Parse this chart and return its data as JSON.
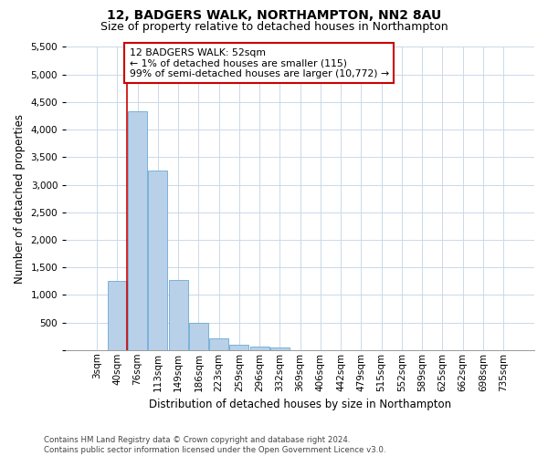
{
  "title": "12, BADGERS WALK, NORTHAMPTON, NN2 8AU",
  "subtitle": "Size of property relative to detached houses in Northampton",
  "xlabel": "Distribution of detached houses by size in Northampton",
  "ylabel": "Number of detached properties",
  "bar_labels": [
    "3sqm",
    "40sqm",
    "76sqm",
    "113sqm",
    "149sqm",
    "186sqm",
    "223sqm",
    "259sqm",
    "296sqm",
    "332sqm",
    "369sqm",
    "406sqm",
    "442sqm",
    "479sqm",
    "515sqm",
    "552sqm",
    "589sqm",
    "625sqm",
    "662sqm",
    "698sqm",
    "735sqm"
  ],
  "bar_values": [
    0,
    1260,
    4330,
    3260,
    1270,
    490,
    210,
    100,
    70,
    50,
    0,
    0,
    0,
    0,
    0,
    0,
    0,
    0,
    0,
    0,
    0
  ],
  "bar_color": "#b8d0e8",
  "bar_edge_color": "#6aaad4",
  "property_line_x": 1.5,
  "property_line_color": "#cc0000",
  "annotation_text": "12 BADGERS WALK: 52sqm\n← 1% of detached houses are smaller (115)\n99% of semi-detached houses are larger (10,772) →",
  "annotation_box_color": "#ffffff",
  "annotation_box_edge": "#cc0000",
  "ylim": [
    0,
    5500
  ],
  "yticks": [
    0,
    500,
    1000,
    1500,
    2000,
    2500,
    3000,
    3500,
    4000,
    4500,
    5000,
    5500
  ],
  "footer": "Contains HM Land Registry data © Crown copyright and database right 2024.\nContains public sector information licensed under the Open Government Licence v3.0.",
  "bg_color": "#ffffff",
  "grid_color": "#ccd8ea",
  "title_fontsize": 10,
  "subtitle_fontsize": 9,
  "axis_label_fontsize": 8.5,
  "tick_fontsize": 7.5,
  "footer_fontsize": 6.2
}
